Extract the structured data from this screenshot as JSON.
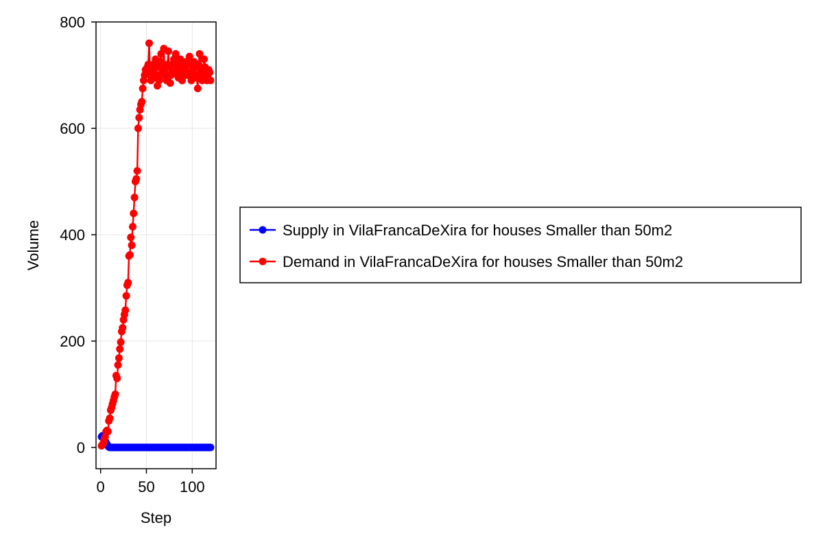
{
  "chart_data": {
    "type": "line",
    "title": "",
    "xlabel": "Step",
    "ylabel": "Volume",
    "xlim": [
      -5,
      126
    ],
    "ylim": [
      -40,
      800
    ],
    "xticks": [
      0,
      50,
      100
    ],
    "yticks": [
      0,
      200,
      400,
      600,
      800
    ],
    "grid": true,
    "legend_position": "right",
    "series": [
      {
        "name": "Supply in VilaFrancaDeXira for houses Smaller than 50m2",
        "color": "#0000ff",
        "x": [
          1,
          2,
          3,
          4,
          5,
          6,
          7,
          8,
          9,
          10,
          11,
          12,
          13,
          14,
          15,
          16,
          17,
          18,
          19,
          20,
          21,
          22,
          23,
          24,
          25,
          26,
          27,
          28,
          29,
          30,
          31,
          32,
          33,
          34,
          35,
          36,
          37,
          38,
          39,
          40,
          41,
          42,
          43,
          44,
          45,
          46,
          47,
          48,
          49,
          50,
          51,
          52,
          53,
          54,
          55,
          56,
          57,
          58,
          59,
          60,
          61,
          62,
          63,
          64,
          65,
          66,
          67,
          68,
          69,
          70,
          71,
          72,
          73,
          74,
          75,
          76,
          77,
          78,
          79,
          80,
          81,
          82,
          83,
          84,
          85,
          86,
          87,
          88,
          89,
          90,
          91,
          92,
          93,
          94,
          95,
          96,
          97,
          98,
          99,
          100,
          101,
          102,
          103,
          104,
          105,
          106,
          107,
          108,
          109,
          110,
          111,
          112,
          113,
          114,
          115,
          116,
          117,
          118,
          119,
          120
        ],
        "y": [
          20,
          22,
          18,
          15,
          12,
          9,
          6,
          3,
          1,
          0,
          0,
          0,
          0,
          0,
          0,
          0,
          0,
          0,
          0,
          0,
          0,
          0,
          0,
          0,
          0,
          0,
          0,
          0,
          0,
          0,
          0,
          0,
          0,
          0,
          0,
          0,
          0,
          0,
          0,
          0,
          0,
          0,
          0,
          0,
          0,
          0,
          0,
          0,
          0,
          0,
          0,
          0,
          0,
          0,
          0,
          0,
          0,
          0,
          0,
          0,
          0,
          0,
          0,
          0,
          0,
          0,
          0,
          0,
          0,
          0,
          0,
          0,
          0,
          0,
          0,
          0,
          0,
          0,
          0,
          0,
          0,
          0,
          0,
          0,
          0,
          0,
          0,
          0,
          0,
          0,
          0,
          0,
          0,
          0,
          0,
          0,
          0,
          0,
          0,
          0,
          0,
          0,
          0,
          0,
          0,
          0,
          0,
          0,
          0,
          0,
          0,
          0,
          0,
          0,
          0,
          0,
          0,
          0,
          0,
          0
        ]
      },
      {
        "name": "Demand in VilaFrancaDeXira for houses Smaller than 50m2",
        "color": "#ff0000",
        "x": [
          1,
          2,
          3,
          4,
          5,
          6,
          7,
          8,
          9,
          10,
          11,
          12,
          13,
          14,
          15,
          16,
          17,
          18,
          19,
          20,
          21,
          22,
          23,
          24,
          25,
          26,
          27,
          28,
          29,
          30,
          31,
          32,
          33,
          34,
          35,
          36,
          37,
          38,
          39,
          40,
          41,
          42,
          43,
          44,
          45,
          46,
          47,
          48,
          49,
          50,
          51,
          52,
          53,
          54,
          55,
          56,
          57,
          58,
          59,
          60,
          61,
          62,
          63,
          64,
          65,
          66,
          67,
          68,
          69,
          70,
          71,
          72,
          73,
          74,
          75,
          76,
          77,
          78,
          79,
          80,
          81,
          82,
          83,
          84,
          85,
          86,
          87,
          88,
          89,
          90,
          91,
          92,
          93,
          94,
          95,
          96,
          97,
          98,
          99,
          100,
          101,
          102,
          103,
          104,
          105,
          106,
          107,
          108,
          109,
          110,
          111,
          112,
          113,
          114,
          115,
          116,
          117,
          118,
          119,
          120
        ],
        "y": [
          3,
          5,
          8,
          15,
          20,
          30,
          32,
          30,
          50,
          55,
          70,
          75,
          82,
          88,
          95,
          100,
          135,
          130,
          155,
          168,
          185,
          198,
          218,
          225,
          240,
          250,
          258,
          285,
          305,
          310,
          360,
          362,
          395,
          380,
          415,
          440,
          470,
          500,
          505,
          520,
          600,
          620,
          635,
          645,
          650,
          675,
          690,
          700,
          710,
          705,
          715,
          720,
          760,
          700,
          690,
          710,
          720,
          705,
          695,
          730,
          715,
          680,
          700,
          690,
          725,
          740,
          710,
          700,
          750,
          705,
          715,
          690,
          720,
          745,
          700,
          685,
          700,
          720,
          710,
          730,
          705,
          740,
          715,
          700,
          695,
          720,
          730,
          705,
          690,
          700,
          715,
          710,
          725,
          700,
          705,
          720,
          735,
          700,
          690,
          705,
          710,
          725,
          715,
          700,
          695,
          675,
          720,
          740,
          710,
          700,
          690,
          705,
          730,
          715,
          700,
          690,
          700,
          710,
          705,
          690
        ]
      }
    ]
  }
}
